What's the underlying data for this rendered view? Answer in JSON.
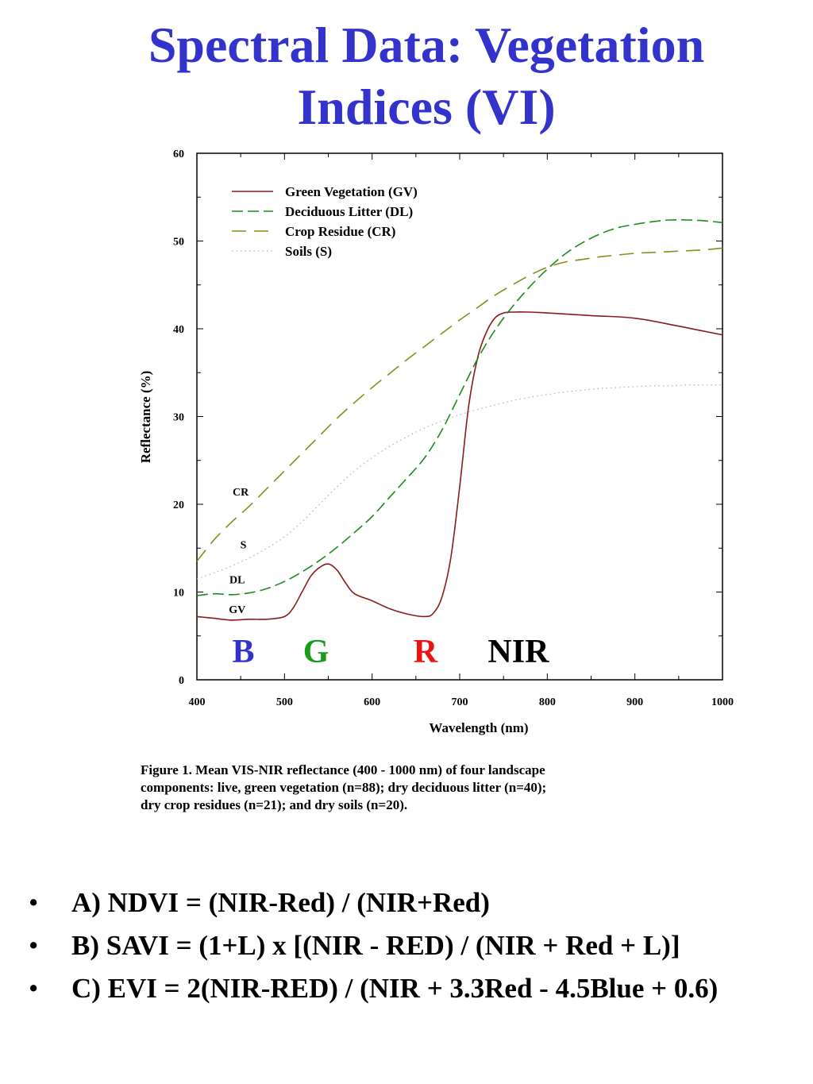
{
  "slide": {
    "title_line1": "Spectral Data:  Vegetation",
    "title_line2": "Indices (VI)"
  },
  "chart_data": {
    "type": "line",
    "title": "",
    "xlabel": "Wavelength (nm)",
    "ylabel": "Reflectance  (%)",
    "xlim": [
      400,
      1000
    ],
    "ylim": [
      0,
      60
    ],
    "x_ticks": [
      400,
      500,
      600,
      700,
      800,
      900,
      1000
    ],
    "y_ticks": [
      0,
      10,
      20,
      30,
      40,
      50,
      60
    ],
    "grid": false,
    "legend_position": "top-left",
    "series": [
      {
        "name": "Green Vegetation (GV)",
        "short_label": "GV",
        "color": "#8b1a1a",
        "dash": "solid",
        "x": [
          400,
          420,
          440,
          460,
          480,
          500,
          510,
          520,
          530,
          540,
          550,
          560,
          570,
          580,
          600,
          620,
          640,
          660,
          670,
          680,
          690,
          700,
          710,
          720,
          730,
          740,
          750,
          760,
          780,
          800,
          850,
          900,
          950,
          975,
          1000
        ],
        "y": [
          7.2,
          7.0,
          6.8,
          6.9,
          6.9,
          7.2,
          8.2,
          10.0,
          11.8,
          12.8,
          13.2,
          12.5,
          11.0,
          9.8,
          9.0,
          8.1,
          7.5,
          7.2,
          7.6,
          9.5,
          14.0,
          22.0,
          31.0,
          36.5,
          39.5,
          41.2,
          41.8,
          41.9,
          41.9,
          41.8,
          41.5,
          41.2,
          40.3,
          39.8,
          39.3
        ]
      },
      {
        "name": "Deciduous Litter (DL)",
        "short_label": "DL",
        "color": "#1a8c1a",
        "dash": "dashed",
        "x": [
          400,
          420,
          440,
          460,
          480,
          500,
          520,
          540,
          560,
          580,
          600,
          620,
          640,
          660,
          680,
          700,
          720,
          740,
          760,
          780,
          800,
          820,
          840,
          860,
          880,
          900,
          920,
          940,
          960,
          980,
          1000
        ],
        "y": [
          9.6,
          9.8,
          9.7,
          9.9,
          10.4,
          11.2,
          12.3,
          13.6,
          15.1,
          16.8,
          18.6,
          20.8,
          23.0,
          25.3,
          28.5,
          32.5,
          36.5,
          39.8,
          42.5,
          44.8,
          46.8,
          48.5,
          49.8,
          50.8,
          51.5,
          51.9,
          52.2,
          52.4,
          52.4,
          52.3,
          52.1
        ]
      },
      {
        "name": "Crop Residue (CR)",
        "short_label": "CR",
        "color": "#8b8b1a",
        "dash": "long-dash",
        "x": [
          400,
          420,
          440,
          460,
          480,
          500,
          520,
          540,
          560,
          580,
          600,
          620,
          640,
          660,
          680,
          700,
          720,
          740,
          760,
          780,
          800,
          820,
          840,
          860,
          880,
          900,
          920,
          940,
          960,
          980,
          1000
        ],
        "y": [
          13.5,
          16.0,
          18.0,
          19.8,
          21.8,
          23.8,
          25.8,
          27.8,
          29.8,
          31.6,
          33.3,
          34.9,
          36.5,
          38.0,
          39.5,
          41.0,
          42.4,
          43.8,
          45.0,
          46.1,
          47.0,
          47.6,
          47.9,
          48.2,
          48.4,
          48.6,
          48.7,
          48.8,
          48.9,
          49.0,
          49.2
        ]
      },
      {
        "name": "Soils (S)",
        "short_label": "S",
        "color": "#b0b0b0",
        "dash": "dotted",
        "x": [
          400,
          420,
          440,
          460,
          480,
          500,
          520,
          540,
          560,
          580,
          600,
          620,
          640,
          660,
          680,
          700,
          720,
          740,
          760,
          780,
          800,
          820,
          840,
          860,
          880,
          900,
          920,
          940,
          960,
          980,
          1000
        ],
        "y": [
          11.5,
          12.2,
          13.0,
          13.9,
          15.0,
          16.3,
          18.0,
          20.0,
          22.0,
          23.8,
          25.3,
          26.6,
          27.7,
          28.7,
          29.5,
          30.2,
          30.8,
          31.3,
          31.8,
          32.2,
          32.5,
          32.8,
          33.0,
          33.2,
          33.3,
          33.4,
          33.5,
          33.5,
          33.6,
          33.6,
          33.6
        ]
      }
    ],
    "curve_labels": [
      {
        "text": "CR",
        "x": 450,
        "y": 21.0
      },
      {
        "text": "S",
        "x": 453,
        "y": 15.0
      },
      {
        "text": "DL",
        "x": 446,
        "y": 11.0
      },
      {
        "text": "GV",
        "x": 446,
        "y": 7.6
      }
    ],
    "band_labels": [
      {
        "text": "B",
        "x": 453,
        "y": 2.0,
        "color": "#3333cc"
      },
      {
        "text": "G",
        "x": 536,
        "y": 2.0,
        "color": "#1a9c1a"
      },
      {
        "text": "R",
        "x": 661,
        "y": 2.0,
        "color": "#ee1111"
      },
      {
        "text": "NIR",
        "x": 767,
        "y": 2.0,
        "color": "#000000"
      }
    ]
  },
  "caption": {
    "line1": "Figure 1.  Mean VIS-NIR reflectance (400 - 1000 nm) of four landscape",
    "line2": "components:  live, green vegetation (n=88); dry deciduous litter (n=40);",
    "line3": "dry crop residues (n=21); and dry soils (n=20)."
  },
  "bullets": {
    "marker": "•",
    "items": [
      {
        "text": "A) NDVI = (NIR-Red)  /  (NIR+Red)"
      },
      {
        "text": "B) SAVI = (1+L) x [(NIR - RED)  /  (NIR + Red + L)]"
      },
      {
        "text": "C) EVI =  2(NIR-RED)  / (NIR + 3.3Red - 4.5Blue + 0.6)"
      }
    ]
  }
}
